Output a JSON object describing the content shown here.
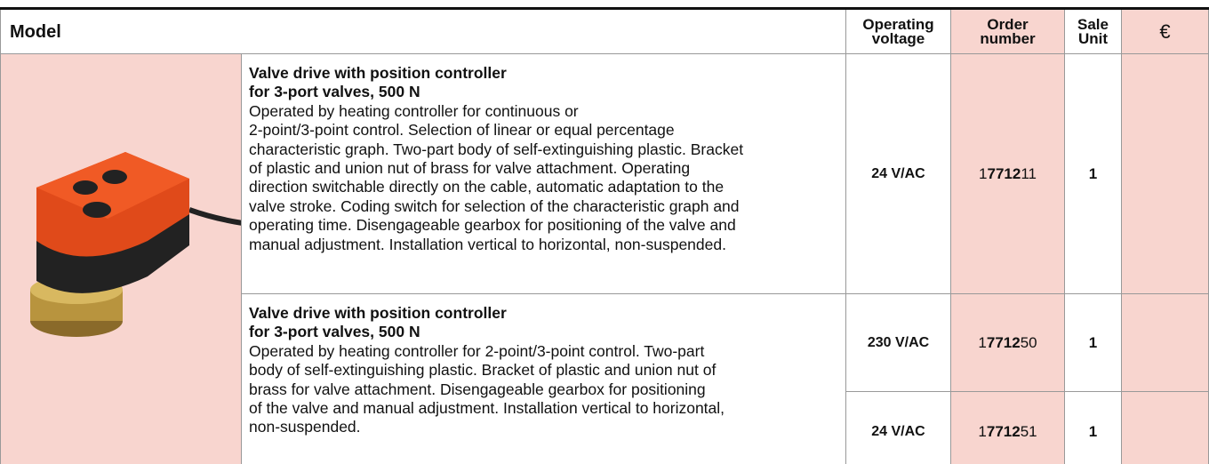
{
  "table": {
    "header": {
      "model": "Model",
      "voltage": "Operating voltage",
      "order": "Order number",
      "unit": "Sale Unit",
      "price": "€"
    },
    "products": [
      {
        "title_lines": [
          "Valve drive with position controller",
          "for 3-port valves, 500 N"
        ],
        "body_lines": [
          "Operated by heating controller for continuous or",
          "2-point/3-point control. Selection of linear or equal percentage",
          "characteristic graph. Two-part body of self-extinguishing plastic. Bracket",
          "of plastic and union nut of brass for valve attachment. Operating",
          "direction switchable directly on the cable, automatic adaptation to the",
          "valve stroke. Coding switch for selection of the characteristic graph and",
          "operating time. Disengageable gearbox for positioning of the valve and",
          "manual adjustment. Installation vertical to horizontal, non-suspended."
        ],
        "variants": [
          {
            "voltage": "24 V/AC",
            "order": [
              "1",
              "7712",
              "11"
            ],
            "unit": "1"
          }
        ]
      },
      {
        "title_lines": [
          "Valve drive with position controller",
          "for 3-port valves, 500 N"
        ],
        "body_lines": [
          "Operated by heating controller for 2-point/3-point control. Two-part",
          "body of self-extinguishing plastic. Bracket of plastic and union nut of",
          "brass for valve attachment. Disengageable gearbox for positioning",
          "of the valve and manual adjustment. Installation vertical to horizontal,",
          "non-suspended."
        ],
        "variants": [
          {
            "voltage": "230 V/AC",
            "order": [
              "1",
              "7712",
              "50"
            ],
            "unit": "1"
          },
          {
            "voltage": "24 V/AC",
            "order": [
              "1",
              "7712",
              "51"
            ],
            "unit": "1"
          }
        ]
      }
    ]
  }
}
